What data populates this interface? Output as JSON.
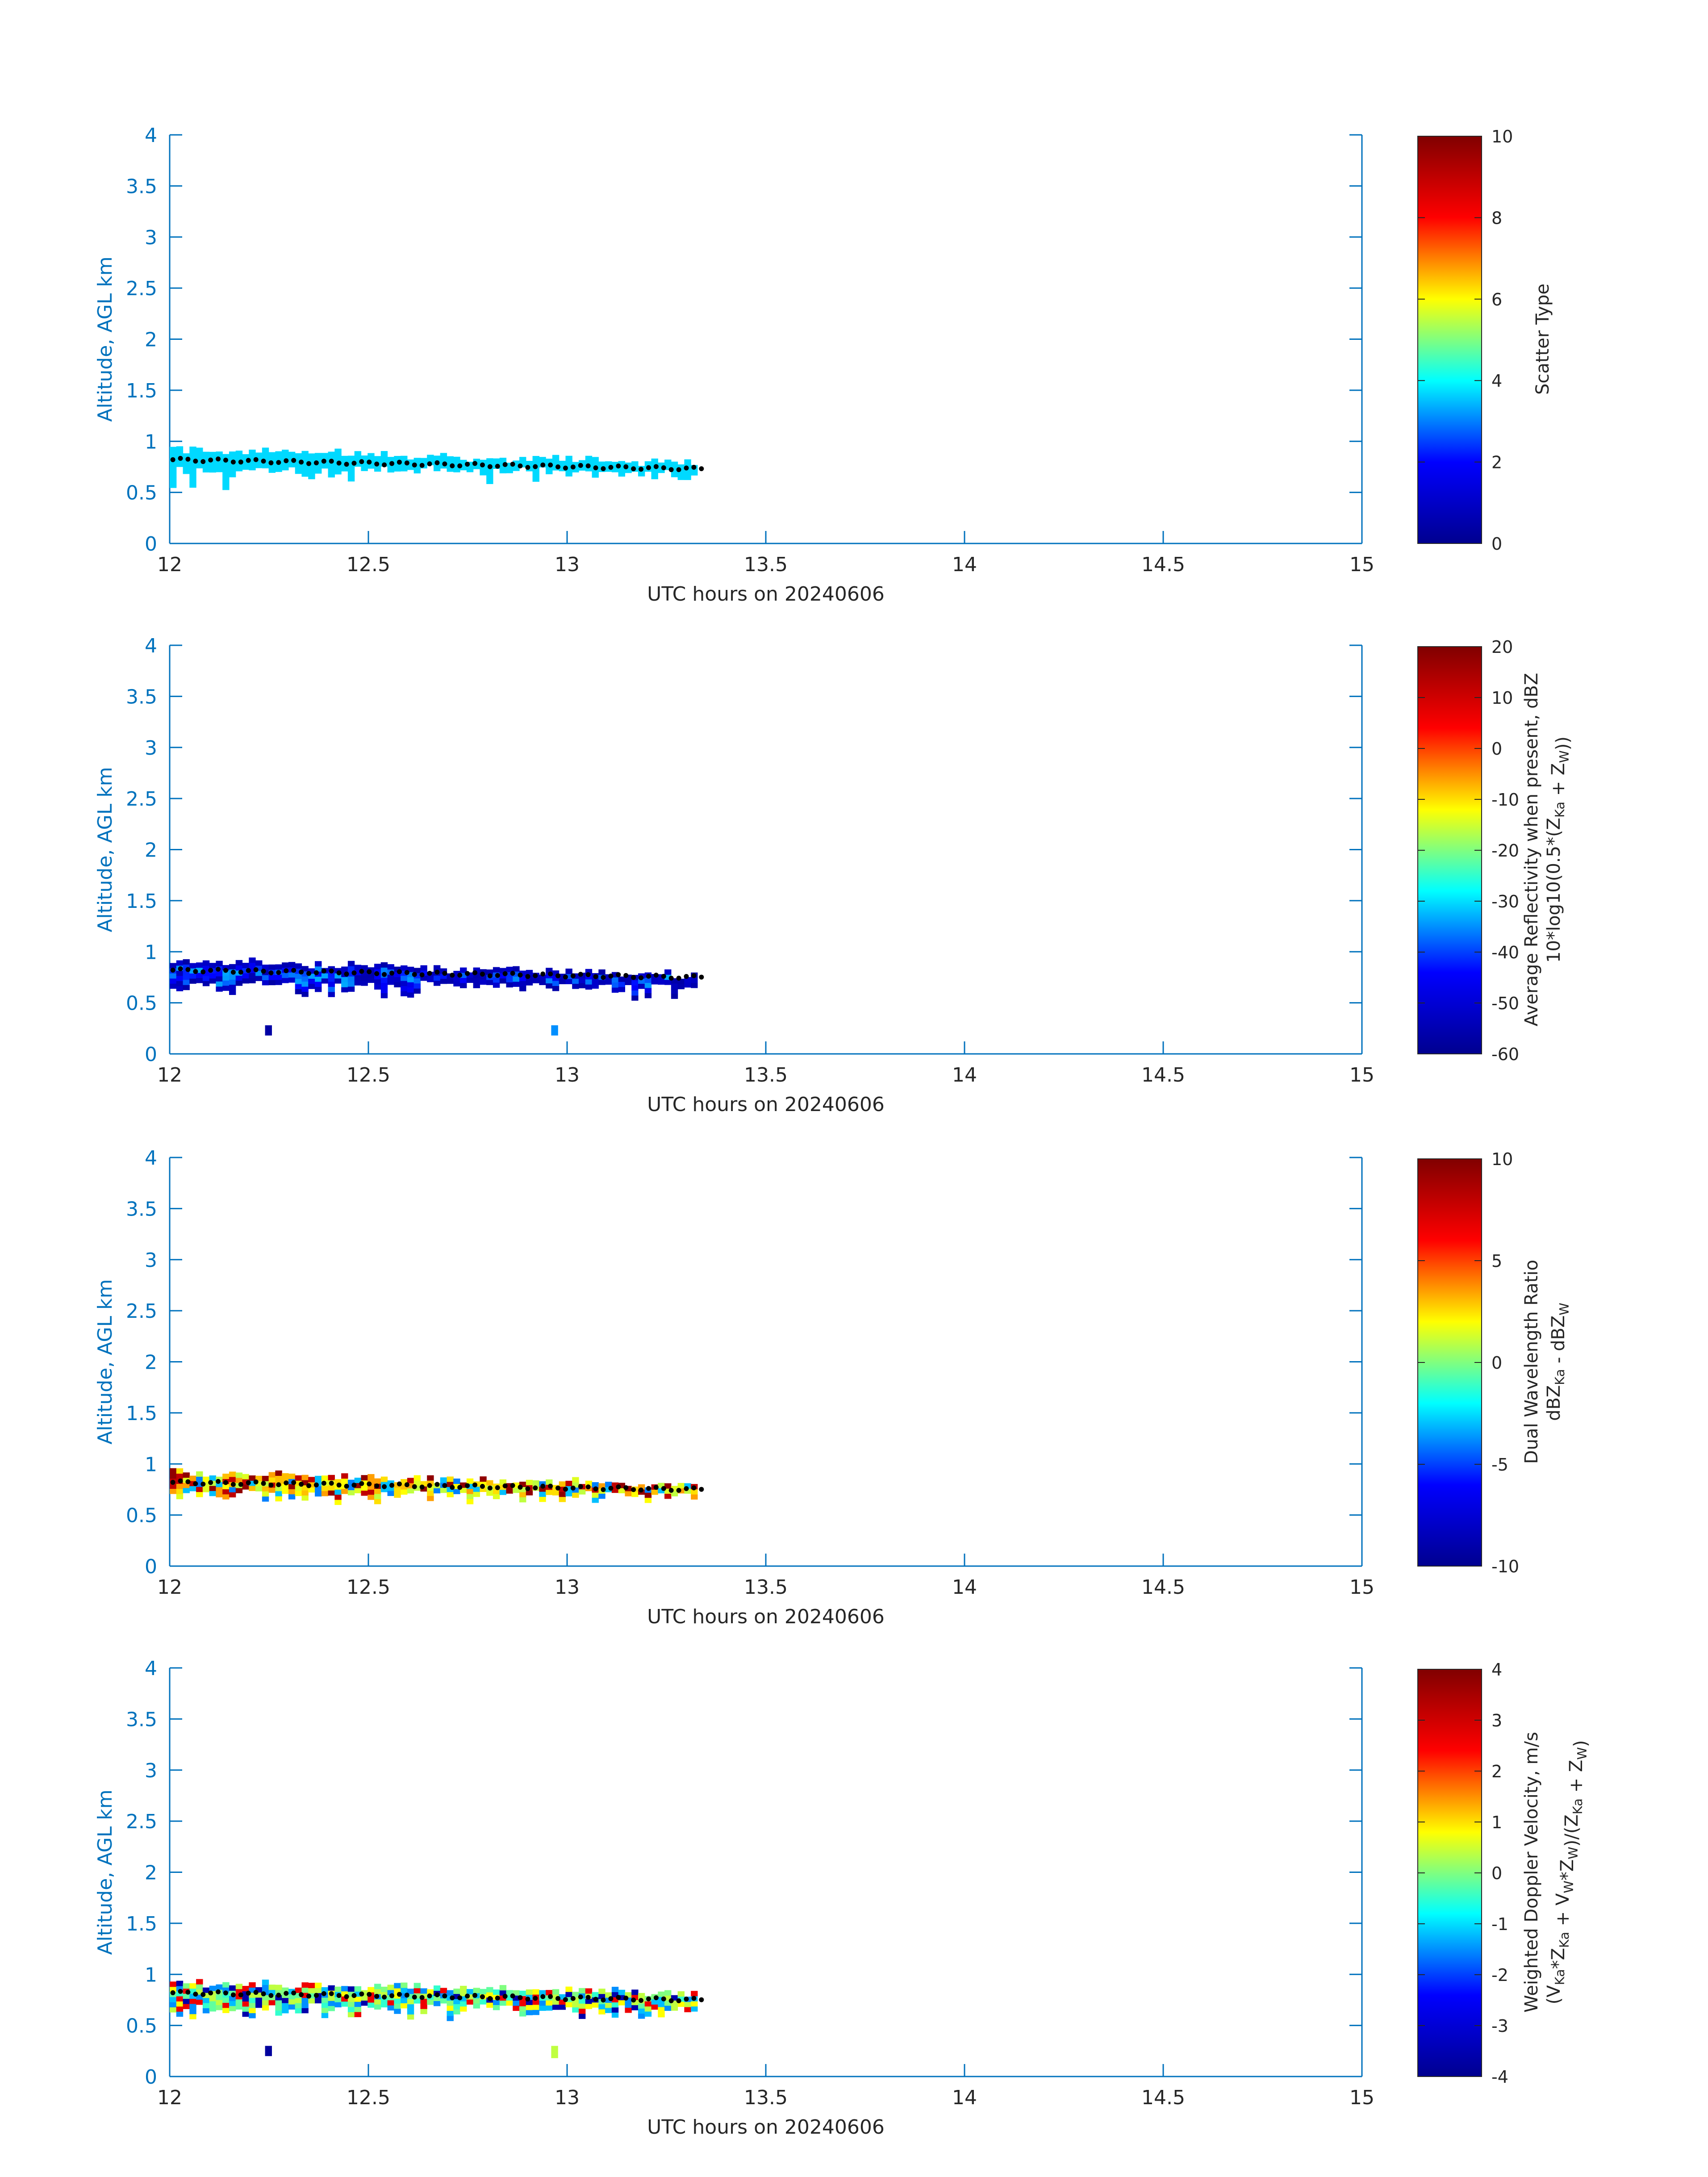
{
  "colors": {
    "axis": "#0072BD",
    "text": "#262626",
    "scatter_type_fill": "#30FFD0",
    "jet_stops": [
      "#00008F",
      "#0000FF",
      "#00FFFF",
      "#FFFF00",
      "#FF0000",
      "#800000"
    ]
  },
  "chart_data": [
    {
      "type": "heatmap",
      "xlabel": "UTC hours on 20240606",
      "ylabel": "Altitude, AGL km",
      "xlim": [
        12,
        15
      ],
      "ylim": [
        0,
        4
      ],
      "xticks": [
        "12",
        "12.5",
        "13",
        "13.5",
        "14",
        "14.5",
        "15"
      ],
      "yticks": [
        "0",
        "0.5",
        "1",
        "1.5",
        "2",
        "2.5",
        "3",
        "3.5",
        "4"
      ],
      "colorbar": {
        "label_lines": [
          "Scatter Type"
        ],
        "range": [
          0,
          10
        ],
        "ticks": [
          "0",
          "2",
          "4",
          "6",
          "8",
          "10"
        ]
      },
      "fill_mode": "constant",
      "fill_value": 3.7,
      "cloud_layer": {
        "x_range": [
          12.0,
          13.33
        ],
        "base_km": [
          0.5,
          0.72
        ],
        "top_km": [
          0.82,
          0.95
        ]
      },
      "isolated_cells": [],
      "cloud_base_points": {
        "x_range": [
          12.0,
          13.33
        ],
        "altitude_km": [
          0.82,
          0.73
        ]
      }
    },
    {
      "type": "heatmap",
      "xlabel": "UTC hours on 20240606",
      "ylabel": "Altitude, AGL km",
      "xlim": [
        12,
        15
      ],
      "ylim": [
        0,
        4
      ],
      "xticks": [
        "12",
        "12.5",
        "13",
        "13.5",
        "14",
        "14.5",
        "15"
      ],
      "yticks": [
        "0",
        "0.5",
        "1",
        "1.5",
        "2",
        "2.5",
        "3",
        "3.5",
        "4"
      ],
      "colorbar": {
        "label_lines": [
          "Average Reflectivity when present, dBZ",
          "10*log10(0.5*(Z_Ka + Z_W))"
        ],
        "range": [
          -60,
          20
        ],
        "ticks": [
          "-60",
          "-50",
          "-40",
          "-30",
          "-20",
          "-10",
          "0",
          "10",
          "20"
        ]
      },
      "fill_mode": "layered",
      "edge_value": -57,
      "core_value": -40,
      "cloud_layer": {
        "x_range": [
          12.0,
          13.33
        ],
        "base_km": [
          0.5,
          0.66
        ],
        "top_km": [
          0.8,
          0.95
        ]
      },
      "isolated_cells": [
        {
          "x": 12.24,
          "alt_km": [
            0.18,
            0.28
          ],
          "value": -57
        },
        {
          "x": 12.96,
          "alt_km": [
            0.18,
            0.28
          ],
          "value": -35
        }
      ],
      "cloud_base_points": {
        "x_range": [
          12.0,
          13.33
        ],
        "altitude_km": [
          0.82,
          0.75
        ]
      }
    },
    {
      "type": "heatmap",
      "xlabel": "UTC hours on 20240606",
      "ylabel": "Altitude, AGL km",
      "xlim": [
        12,
        15
      ],
      "ylim": [
        0,
        4
      ],
      "xticks": [
        "12",
        "12.5",
        "13",
        "13.5",
        "14",
        "14.5",
        "15"
      ],
      "yticks": [
        "0",
        "0.5",
        "1",
        "1.5",
        "2",
        "2.5",
        "3",
        "3.5",
        "4"
      ],
      "colorbar": {
        "label_lines": [
          "Dual Wavelength Ratio",
          "dBZ_Ka - dBZ_W"
        ],
        "range": [
          -10,
          10
        ],
        "ticks": [
          "-10",
          "-5",
          "0",
          "5",
          "10"
        ]
      },
      "fill_mode": "mixed",
      "value_pool": [
        2,
        2.5,
        3,
        3.5,
        1.5,
        1,
        -3,
        -4,
        8,
        9.5
      ],
      "cloud_layer": {
        "x_range": [
          12.0,
          13.33
        ],
        "base_km": [
          0.55,
          0.7
        ],
        "top_km": [
          0.82,
          0.95
        ]
      },
      "isolated_cells": [],
      "cloud_base_points": {
        "x_range": [
          12.0,
          13.33
        ],
        "altitude_km": [
          0.82,
          0.75
        ]
      }
    },
    {
      "type": "heatmap",
      "xlabel": "UTC hours on 20240606",
      "ylabel": "Altitude, AGL km",
      "xlim": [
        12,
        15
      ],
      "ylim": [
        0,
        4
      ],
      "xticks": [
        "12",
        "12.5",
        "13",
        "13.5",
        "14",
        "14.5",
        "15"
      ],
      "yticks": [
        "0",
        "0.5",
        "1",
        "1.5",
        "2",
        "2.5",
        "3",
        "3.5",
        "4"
      ],
      "colorbar": {
        "label_lines": [
          "Weighted Doppler Velocity, m/s",
          "(V_Ka*Z_Ka + V_W*Z_W)/(Z_Ka + Z_W)"
        ],
        "range": [
          -4,
          4
        ],
        "ticks": [
          "-4",
          "-3",
          "-2",
          "-1",
          "0",
          "1",
          "2",
          "3",
          "4"
        ]
      },
      "fill_mode": "mixed",
      "value_pool": [
        -0.5,
        0,
        0.4,
        -1.2,
        -1.5,
        0.8,
        -0.2,
        2.6,
        -3.6
      ],
      "cloud_layer": {
        "x_range": [
          12.0,
          13.33
        ],
        "base_km": [
          0.48,
          0.66
        ],
        "top_km": [
          0.85,
          0.95
        ]
      },
      "isolated_cells": [
        {
          "x": 12.24,
          "alt_km": [
            0.2,
            0.3
          ],
          "value": -3.8
        },
        {
          "x": 12.96,
          "alt_km": [
            0.18,
            0.3
          ],
          "value": 0.4
        }
      ],
      "cloud_base_points": {
        "x_range": [
          12.0,
          13.33
        ],
        "altitude_km": [
          0.82,
          0.75
        ]
      }
    }
  ]
}
